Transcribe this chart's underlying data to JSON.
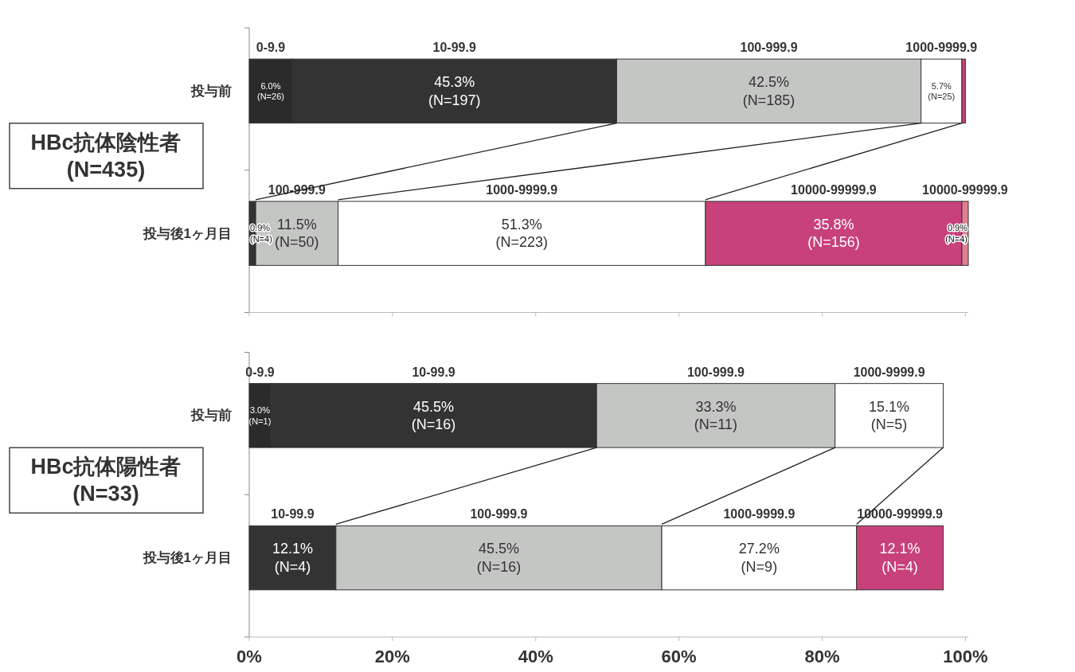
{
  "chart_data": [
    {
      "type": "bar",
      "orientation": "horizontal",
      "stacked": true,
      "title": "HBc抗体陰性者\n(N=435)",
      "categories": [
        "投与前",
        "投与後1ヶ月目"
      ],
      "series": [
        {
          "color": "#2b2b2b",
          "values": [
            6.0,
            null
          ],
          "value_labels": [
            "0-9.9\n6.0%\n(N=26)",
            null
          ]
        },
        {
          "color": "#333333",
          "values": [
            45.3,
            0.9
          ],
          "value_labels": [
            "10-99.9\n45.3%\n(N=197)",
            "0.9%\n(N=4)"
          ]
        },
        {
          "color": "#c4c6c4",
          "values": [
            42.5,
            11.5
          ],
          "value_labels": [
            "100-999.9\n42.5%\n(N=185)",
            "100-999.9\n11.5%\n(N=50)"
          ]
        },
        {
          "color": "#ffffff",
          "values": [
            5.7,
            51.3
          ],
          "value_labels": [
            "1000-9999.9\n5.7%\n(N=25)",
            "1000-9999.9\n51.3%\n(N=223)"
          ]
        },
        {
          "color": "#c8417a",
          "values": [
            0.5,
            35.8
          ],
          "value_labels": [
            null,
            "10000-99999.9\n35.8%\n(N=156)"
          ]
        },
        {
          "color": "#e07f90",
          "values": [
            null,
            0.9
          ],
          "value_labels": [
            null,
            "10000-99999.9\n0.9%\n(N=4)"
          ]
        }
      ],
      "xlim": [
        0,
        100.4
      ],
      "xticks": [
        0,
        20,
        40,
        60,
        80,
        100
      ],
      "tick_labels": "y"
    },
    {
      "type": "bar",
      "orientation": "horizontal",
      "stacked": true,
      "title": "HBc抗体陽性者\n(N=33)",
      "categories": [
        "投与前",
        "投与後1ヶ月目"
      ],
      "series": [
        {
          "color": "#2b2b2b",
          "values": [
            3.0,
            null
          ],
          "value_labels": [
            "0-9.9\n3.0%\n(N=1)",
            null
          ]
        },
        {
          "color": "#333333",
          "values": [
            45.5,
            12.1
          ],
          "value_labels": [
            "10-99.9\n45.5%\n(N=16)",
            "10-99.9\n12.1%\n(N=4)"
          ]
        },
        {
          "color": "#c4c6c4",
          "values": [
            33.3,
            45.5
          ],
          "value_labels": [
            "100-999.9\n33.3%\n(N=11)",
            "100-999.9\n45.5%\n(N=16)"
          ]
        },
        {
          "color": "#ffffff",
          "values": [
            15.1,
            27.2
          ],
          "value_labels": [
            "1000-9999.9\n15.1%\n(N=5)",
            "1000-9999.9\n27.2%\n(N=9)"
          ]
        },
        {
          "color": "#c8417a",
          "values": [
            null,
            12.1
          ],
          "value_labels": [
            null,
            "10000-99999.9\n12.1%\n(N=4)"
          ]
        }
      ],
      "xlim": [
        0,
        100.4
      ],
      "xticks": [
        {
          "value": 0,
          "label": "0%"
        },
        {
          "value": 20,
          "label": "20%"
        },
        {
          "value": 40,
          "label": "40%"
        },
        {
          "value": 60,
          "label": "60%"
        },
        {
          "value": 80,
          "label": "80%"
        },
        {
          "value": 100,
          "label": "100%"
        }
      ]
    }
  ]
}
